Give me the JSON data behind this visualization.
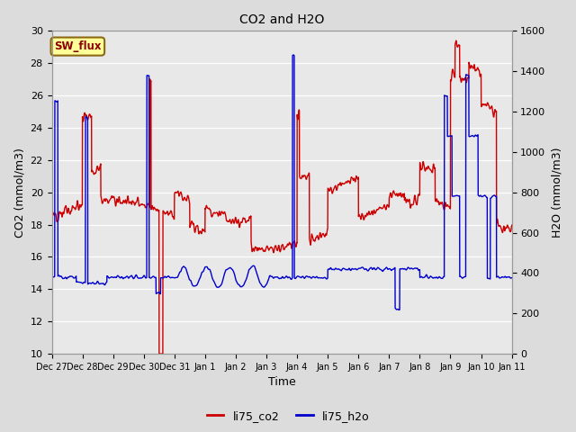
{
  "title": "CO2 and H2O",
  "xlabel": "Time",
  "ylabel_left": "CO2 (mmol/m3)",
  "ylabel_right": "H2O (mmol/m3)",
  "ylim_left": [
    10,
    30
  ],
  "ylim_right": [
    0,
    1600
  ],
  "yticks_left": [
    10,
    12,
    14,
    16,
    18,
    20,
    22,
    24,
    26,
    28,
    30
  ],
  "yticks_right": [
    0,
    200,
    400,
    600,
    800,
    1000,
    1200,
    1400,
    1600
  ],
  "xtick_labels": [
    "Dec 27",
    "Dec 28",
    "Dec 29",
    "Dec 30",
    "Dec 31",
    "Jan 1",
    "Jan 2",
    "Jan 3",
    "Jan 4",
    "Jan 5",
    "Jan 6",
    "Jan 7",
    "Jan 8",
    "Jan 9",
    "Jan 10",
    "Jan 11"
  ],
  "annotation_text": "SW_flux",
  "annotation_color": "#8B0000",
  "annotation_bg": "#FFFF99",
  "annotation_border": "#8B6914",
  "co2_color": "#CC0000",
  "h2o_color": "#0000CC",
  "fig_bg": "#DCDCDC",
  "plot_bg": "#E8E8E8",
  "grid_color": "#FFFFFF",
  "legend_co2": "li75_co2",
  "legend_h2o": "li75_h2o",
  "linewidth": 1.0
}
